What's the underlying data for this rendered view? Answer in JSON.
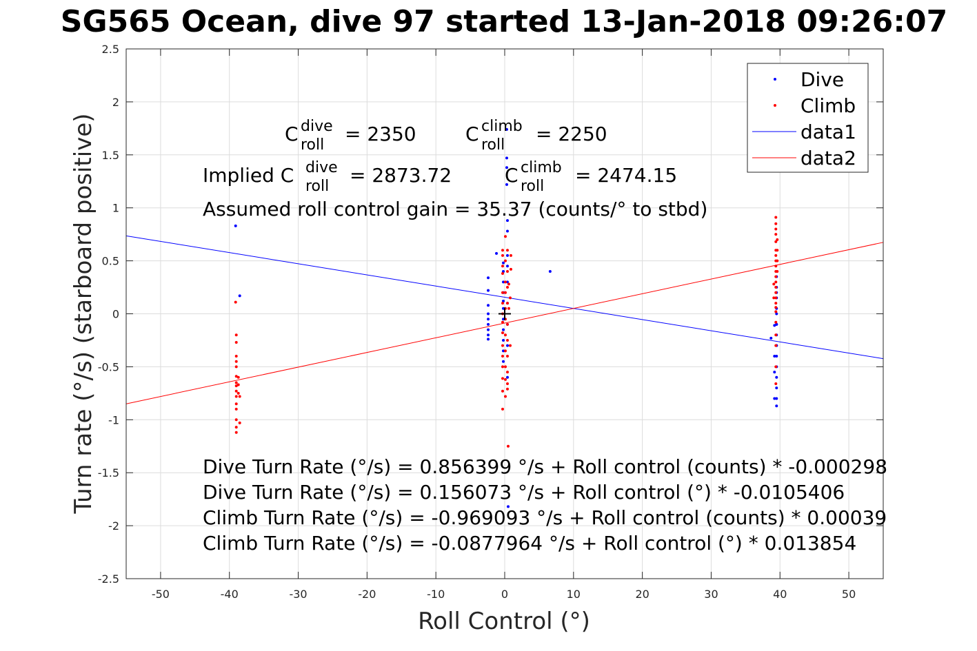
{
  "chart_data": {
    "type": "scatter",
    "title": "SG565 Ocean, dive 97 started 13-Jan-2018 09:26:07",
    "xlabel": "Roll Control (°)",
    "ylabel": "Turn rate (°/s) (starboard positive)",
    "xlim": [
      -55,
      55
    ],
    "ylim": [
      -2.5,
      2.5
    ],
    "x_ticks": [
      -50,
      -40,
      -30,
      -20,
      -10,
      0,
      10,
      20,
      30,
      40,
      50
    ],
    "y_ticks": [
      -2.5,
      -2,
      -1.5,
      -1,
      -0.5,
      0,
      0.5,
      1,
      1.5,
      2,
      2.5
    ],
    "grid": true,
    "legend_position": "top-right",
    "legend": [
      "Dive",
      "Climb",
      "data1",
      "data2"
    ],
    "colors": {
      "dive": "#0000ff",
      "climb": "#ff0000",
      "axis": "#262626",
      "grid": "#dcdcdc"
    },
    "series": [
      {
        "name": "Dive",
        "kind": "points",
        "points": [
          [
            -39.1,
            0.83
          ],
          [
            -38.5,
            0.17
          ],
          [
            -2.4,
            0.34
          ],
          [
            -2.4,
            0.22
          ],
          [
            -2.4,
            0.08
          ],
          [
            -2.4,
            0.0
          ],
          [
            -2.4,
            -0.05
          ],
          [
            -2.4,
            -0.1
          ],
          [
            -2.4,
            -0.15
          ],
          [
            -2.4,
            -0.2
          ],
          [
            -2.4,
            -0.24
          ],
          [
            -1.2,
            0.57
          ],
          [
            -0.2,
            0.48
          ],
          [
            -0.2,
            0.4
          ],
          [
            -0.2,
            0.3
          ],
          [
            -0.2,
            0.2
          ],
          [
            -0.2,
            0.12
          ],
          [
            -0.2,
            0.05
          ],
          [
            -0.2,
            -0.05
          ],
          [
            -0.2,
            -0.15
          ],
          [
            -0.2,
            -0.25
          ],
          [
            -0.2,
            -0.35
          ],
          [
            -0.2,
            -0.45
          ],
          [
            0.3,
            1.74
          ],
          [
            0.3,
            1.47
          ],
          [
            0.3,
            1.38
          ],
          [
            0.3,
            1.22
          ],
          [
            0.4,
            0.88
          ],
          [
            0.4,
            0.78
          ],
          [
            0.4,
            0.55
          ],
          [
            0.4,
            0.45
          ],
          [
            0.4,
            0.3
          ],
          [
            0.4,
            0.1
          ],
          [
            0.4,
            -0.1
          ],
          [
            0.4,
            -0.3
          ],
          [
            0.4,
            -0.6
          ],
          [
            0.5,
            -1.82
          ],
          [
            6.6,
            0.4
          ],
          [
            39.5,
            0.2
          ],
          [
            39.5,
            0.15
          ],
          [
            39.5,
            0.0
          ],
          [
            39.5,
            -0.1
          ],
          [
            39.5,
            -0.2
          ],
          [
            39.5,
            -0.3
          ],
          [
            39.5,
            -0.4
          ],
          [
            39.5,
            -0.5
          ],
          [
            39.5,
            -0.6
          ],
          [
            39.5,
            -0.7
          ],
          [
            39.5,
            -0.8
          ],
          [
            39.5,
            -0.87
          ],
          [
            39.5,
            -0.3
          ],
          [
            39.5,
            -0.1
          ],
          [
            39.5,
            0.05
          ],
          [
            39.5,
            0.35
          ],
          [
            39.5,
            0.25
          ],
          [
            39.2,
            -0.8
          ],
          [
            39.2,
            -0.55
          ],
          [
            39.2,
            -0.4
          ],
          [
            39.2,
            -0.11
          ],
          [
            38.7,
            -0.23
          ]
        ]
      },
      {
        "name": "Climb",
        "kind": "points",
        "points": [
          [
            -39.1,
            0.11
          ],
          [
            -39.0,
            -0.2
          ],
          [
            -39.0,
            -0.27
          ],
          [
            -39.0,
            -0.4
          ],
          [
            -39.0,
            -0.45
          ],
          [
            -39.0,
            -0.5
          ],
          [
            -39.0,
            -0.59
          ],
          [
            -39.0,
            -0.65
          ],
          [
            -39.0,
            -0.68
          ],
          [
            -39.0,
            -0.73
          ],
          [
            -39.0,
            -0.78
          ],
          [
            -39.0,
            -0.85
          ],
          [
            -39.0,
            -0.9
          ],
          [
            -39.0,
            -1.0
          ],
          [
            -39.0,
            -1.07
          ],
          [
            -39.0,
            -1.12
          ],
          [
            -38.7,
            -0.6
          ],
          [
            -38.7,
            -0.67
          ],
          [
            -38.7,
            -0.75
          ],
          [
            -38.5,
            -0.78
          ],
          [
            -38.5,
            -1.03
          ],
          [
            -0.3,
            0.6
          ],
          [
            -0.3,
            0.55
          ],
          [
            -0.3,
            0.45
          ],
          [
            -0.3,
            0.38
          ],
          [
            -0.3,
            0.2
          ],
          [
            -0.3,
            0.1
          ],
          [
            -0.3,
            0.0
          ],
          [
            -0.3,
            -0.08
          ],
          [
            -0.3,
            -0.18
          ],
          [
            -0.3,
            -0.3
          ],
          [
            -0.3,
            -0.4
          ],
          [
            -0.3,
            -0.5
          ],
          [
            -0.3,
            -0.61
          ],
          [
            -0.3,
            -0.73
          ],
          [
            -0.3,
            -0.9
          ],
          [
            0.1,
            0.73
          ],
          [
            0.1,
            0.5
          ],
          [
            0.1,
            0.3
          ],
          [
            0.1,
            0.2
          ],
          [
            0.1,
            0.05
          ],
          [
            0.1,
            -0.05
          ],
          [
            0.1,
            -0.2
          ],
          [
            0.1,
            -0.35
          ],
          [
            0.1,
            -0.5
          ],
          [
            0.1,
            -0.62
          ],
          [
            0.1,
            -0.78
          ],
          [
            0.4,
            0.6
          ],
          [
            0.4,
            0.4
          ],
          [
            0.4,
            0.25
          ],
          [
            0.4,
            0.1
          ],
          [
            0.4,
            -0.1
          ],
          [
            0.4,
            -0.25
          ],
          [
            0.4,
            -0.4
          ],
          [
            0.4,
            -0.55
          ],
          [
            0.4,
            -0.66
          ],
          [
            0.4,
            -0.71
          ],
          [
            0.5,
            -1.25
          ],
          [
            0.8,
            0.15
          ],
          [
            0.8,
            -0.3
          ],
          [
            0.9,
            0.42
          ],
          [
            0.9,
            0.55
          ],
          [
            0.6,
            0.28
          ],
          [
            0.6,
            0.05
          ],
          [
            39.4,
            0.91
          ],
          [
            39.4,
            0.85
          ],
          [
            39.4,
            0.8
          ],
          [
            39.4,
            0.75
          ],
          [
            39.4,
            0.68
          ],
          [
            39.4,
            0.6
          ],
          [
            39.4,
            0.55
          ],
          [
            39.4,
            0.5
          ],
          [
            39.4,
            0.45
          ],
          [
            39.4,
            0.4
          ],
          [
            39.4,
            0.35
          ],
          [
            39.4,
            0.3
          ],
          [
            39.4,
            0.25
          ],
          [
            39.4,
            0.2
          ],
          [
            39.4,
            0.15
          ],
          [
            39.4,
            0.1
          ],
          [
            39.4,
            0.06
          ],
          [
            39.4,
            0.02
          ],
          [
            39.4,
            -0.08
          ],
          [
            39.4,
            -0.2
          ],
          [
            39.4,
            -0.3
          ],
          [
            39.4,
            -0.5
          ],
          [
            39.4,
            -0.66
          ],
          [
            39.6,
            0.5
          ],
          [
            39.6,
            0.6
          ],
          [
            39.6,
            0.7
          ],
          [
            39.6,
            0.4
          ],
          [
            39.1,
            0.28
          ],
          [
            39.1,
            0.15
          ]
        ]
      },
      {
        "name": "data1",
        "kind": "line",
        "points": [
          [
            -55,
            0.7357
          ],
          [
            55,
            -0.4237
          ]
        ]
      },
      {
        "name": "data2",
        "kind": "line",
        "points": [
          [
            -55,
            -0.8498
          ],
          [
            55,
            0.6742
          ]
        ]
      }
    ],
    "crosshair_marker": [
      0,
      0
    ],
    "annotations": {
      "dive_c_roll": "= 2350",
      "climb_c_roll": "= 2250",
      "implied_prefix": "Implied C",
      "implied_dive": "= 2873.72",
      "implied_climb": "= 2474.15",
      "gain_line": "Assumed roll control gain = 35.37 (counts/° to stbd)",
      "fit_lines": [
        "Dive Turn Rate (°/s) = 0.856399 °/s + Roll control (counts) * -0.000298",
        "Dive Turn Rate (°/s) = 0.156073 °/s + Roll control (°) * -0.0105406",
        "Climb Turn Rate (°/s) = -0.969093 °/s + Roll control (counts) * 0.00039",
        "Climb Turn Rate (°/s) = -0.0877964 °/s + Roll control (°) * 0.013854"
      ],
      "sym_C": "C",
      "sub_roll": "roll",
      "sup_dive": "dive",
      "sup_climb": "climb"
    }
  }
}
